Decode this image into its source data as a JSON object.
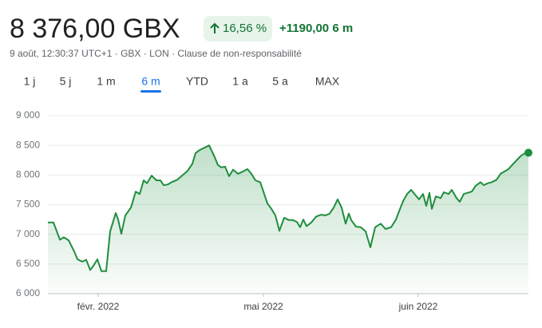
{
  "header": {
    "price": "8 376,00 GBX",
    "change_percent": "16,56 %",
    "change_abs": "+1190,00 6 m",
    "subtitle": "9 août, 12:30:37 UTC+1 · GBX · LON · Clause de non-responsabilité",
    "tabs": [
      "1 j",
      "5 j",
      "1 m",
      "6 m",
      "YTD",
      "1 a",
      "5 a",
      "MAX"
    ],
    "selected_tab": 3
  },
  "chart_data": {
    "type": "area-line",
    "color": "#1e8e3e",
    "grid": true,
    "xlim": [
      0,
      602
    ],
    "xticks": [
      {
        "value": 63,
        "label": "févr. 2022"
      },
      {
        "value": 270,
        "label": "mai 2022"
      },
      {
        "value": 464,
        "label": "juin 2022"
      }
    ],
    "ylim": [
      6000,
      9000
    ],
    "yticks": [
      {
        "value": 6000,
        "label": "6 000"
      },
      {
        "value": 6500,
        "label": "6 500"
      },
      {
        "value": 7000,
        "label": "7 000"
      },
      {
        "value": 7500,
        "label": "7 500"
      },
      {
        "value": 8000,
        "label": "8 000"
      },
      {
        "value": 8500,
        "label": "8 500"
      },
      {
        "value": 9000,
        "label": "9 000"
      }
    ],
    "x": [
      0,
      7,
      15,
      20,
      26,
      33,
      37,
      43,
      48,
      53,
      57,
      62,
      67,
      73,
      78,
      85,
      88,
      92,
      97,
      104,
      110,
      115,
      120,
      124,
      130,
      136,
      141,
      145,
      150,
      155,
      162,
      168,
      175,
      181,
      185,
      190,
      196,
      202,
      208,
      213,
      217,
      222,
      227,
      232,
      238,
      243,
      250,
      255,
      260,
      266,
      270,
      275,
      280,
      285,
      290,
      296,
      302,
      307,
      312,
      316,
      320,
      324,
      330,
      336,
      342,
      348,
      353,
      358,
      363,
      368,
      373,
      377,
      380,
      386,
      392,
      398,
      404,
      410,
      417,
      423,
      430,
      436,
      440,
      445,
      450,
      455,
      460,
      465,
      470,
      474,
      478,
      481,
      486,
      492,
      496,
      502,
      506,
      512,
      516,
      521,
      526,
      531,
      536,
      542,
      546,
      551,
      556,
      562,
      567,
      572,
      577,
      583,
      588,
      593,
      598,
      602
    ],
    "values": [
      7200,
      7200,
      6910,
      6950,
      6900,
      6710,
      6580,
      6540,
      6570,
      6400,
      6470,
      6580,
      6380,
      6380,
      7050,
      7360,
      7250,
      7010,
      7320,
      7450,
      7720,
      7680,
      7910,
      7860,
      7990,
      7910,
      7910,
      7830,
      7840,
      7880,
      7920,
      7990,
      8070,
      8190,
      8370,
      8420,
      8460,
      8500,
      8330,
      8170,
      8130,
      8140,
      7980,
      8090,
      8020,
      8050,
      8100,
      8020,
      7910,
      7880,
      7720,
      7520,
      7430,
      7320,
      7060,
      7280,
      7240,
      7240,
      7210,
      7120,
      7250,
      7140,
      7200,
      7300,
      7330,
      7320,
      7350,
      7450,
      7590,
      7450,
      7180,
      7350,
      7240,
      7130,
      7120,
      7050,
      6780,
      7120,
      7180,
      7090,
      7120,
      7250,
      7390,
      7560,
      7680,
      7750,
      7670,
      7590,
      7680,
      7480,
      7700,
      7430,
      7640,
      7610,
      7710,
      7680,
      7750,
      7610,
      7550,
      7680,
      7700,
      7720,
      7820,
      7880,
      7830,
      7860,
      7880,
      7920,
      8020,
      8060,
      8100,
      8190,
      8260,
      8330,
      8370,
      8376
    ]
  }
}
